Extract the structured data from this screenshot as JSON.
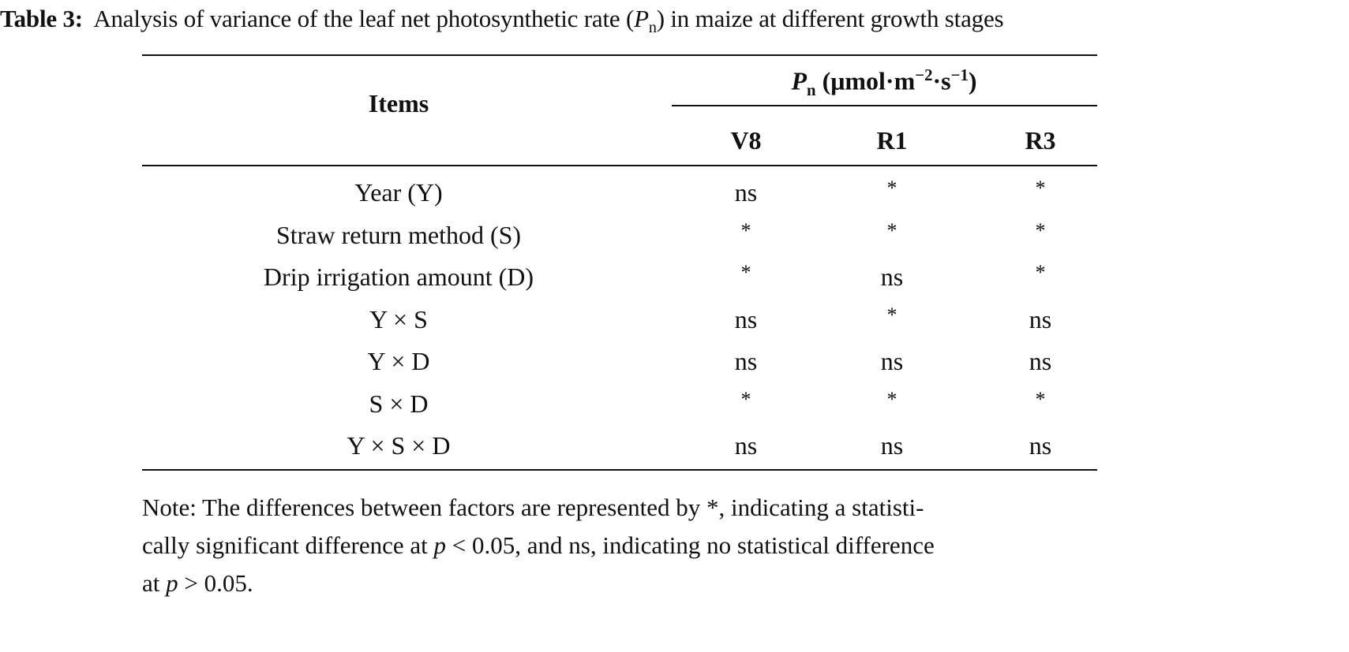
{
  "caption": {
    "label": "Table 3:",
    "text_before": "Analysis of variance of the leaf net photosynthetic rate (",
    "symbol": "P",
    "symbol_sub": "n",
    "text_after": ") in maize at different growth stages"
  },
  "table": {
    "items_header": "Items",
    "group_header": {
      "symbol": "P",
      "symbol_sub": "n",
      "unit_a": " (μmol·m",
      "exp_a": "−2",
      "unit_b": "·s",
      "exp_b": "−1",
      "unit_c": ")"
    },
    "columns": [
      "V8",
      "R1",
      "R3"
    ],
    "rows": [
      {
        "item": "Year (Y)",
        "values": [
          "ns",
          "*",
          "*"
        ]
      },
      {
        "item": "Straw return method (S)",
        "values": [
          "*",
          "*",
          "*"
        ]
      },
      {
        "item": "Drip irrigation amount (D)",
        "values": [
          "*",
          "ns",
          "*"
        ]
      },
      {
        "item": "Y × S",
        "values": [
          "ns",
          "*",
          "ns"
        ]
      },
      {
        "item": "Y × D",
        "values": [
          "ns",
          "ns",
          "ns"
        ]
      },
      {
        "item": "S × D",
        "values": [
          "*",
          "*",
          "*"
        ]
      },
      {
        "item": "Y × S × D",
        "values": [
          "ns",
          "ns",
          "ns"
        ]
      }
    ]
  },
  "note": {
    "line1": "Note: The differences between factors are represented by *, indicating a statisti-",
    "line2_a": "cally significant difference at ",
    "line2_p": "p",
    "line2_b": " < 0.05, and ns, indicating no statistical difference",
    "line3_a": "at ",
    "line3_p": "p",
    "line3_b": " > 0.05."
  }
}
